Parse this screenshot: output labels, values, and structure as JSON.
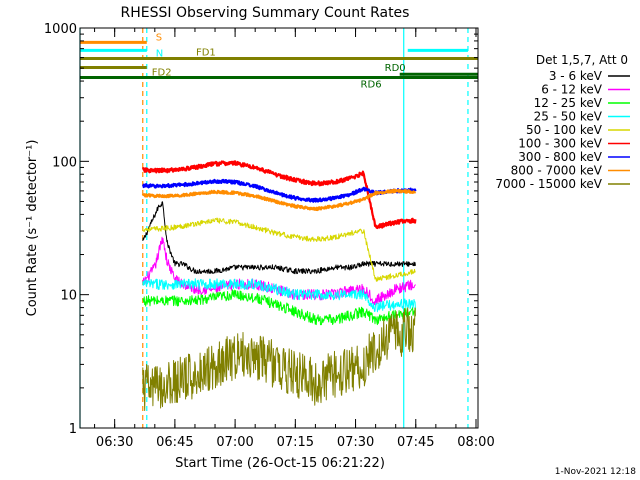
{
  "chart_data": {
    "type": "line",
    "title": "RHESSI Observing Summary Count Rates",
    "xlabel": "Start Time (26-Oct-15 06:21:22)",
    "ylabel": "Count Rate (s⁻¹ detector⁻¹)",
    "yscale": "log",
    "ylim": [
      1,
      1000
    ],
    "xlim": [
      "06:21:22",
      "08:00:30"
    ],
    "x_ticks": [
      "06:30",
      "06:45",
      "07:00",
      "07:15",
      "07:30",
      "07:45",
      "08:00"
    ],
    "y_ticks": [
      "1",
      "10",
      "100",
      "1000"
    ],
    "legend_title": "Det 1,5,7, Att 0",
    "legend_position": "right",
    "series": [
      {
        "name": "3 - 6 keV",
        "color": "#000000",
        "x": [
          "06:37",
          "06:39",
          "06:41",
          "06:42",
          "06:43",
          "06:45",
          "06:47",
          "06:50",
          "06:55",
          "07:00",
          "07:05",
          "07:10",
          "07:15",
          "07:20",
          "07:25",
          "07:29",
          "07:32",
          "07:35",
          "07:40",
          "07:45"
        ],
        "y": [
          25,
          34,
          46,
          49,
          25,
          17,
          17,
          15,
          15,
          16,
          16,
          16,
          15,
          15,
          16,
          16,
          17,
          17,
          17,
          17
        ]
      },
      {
        "name": "6 - 12 keV",
        "color": "#ff00ff",
        "x": [
          "06:37",
          "06:40",
          "06:42",
          "06:43",
          "06:45",
          "06:47",
          "06:50",
          "06:55",
          "07:00",
          "07:05",
          "07:10",
          "07:15",
          "07:20",
          "07:25",
          "07:29",
          "07:32",
          "07:35",
          "07:40",
          "07:45"
        ],
        "y": [
          12,
          16,
          27,
          18,
          13,
          12,
          11,
          11,
          12,
          12,
          11,
          10,
          10,
          10,
          11,
          11,
          9,
          11,
          12
        ]
      },
      {
        "name": "12 - 25 keV",
        "color": "#00ff00",
        "x": [
          "06:37",
          "06:40",
          "06:45",
          "06:50",
          "06:55",
          "07:00",
          "07:05",
          "07:10",
          "07:15",
          "07:20",
          "07:25",
          "07:29",
          "07:32",
          "07:35",
          "07:40",
          "07:45"
        ],
        "y": [
          9,
          9,
          9,
          9,
          9.5,
          10,
          9.5,
          8.5,
          7.5,
          6.5,
          6.5,
          7,
          7.5,
          6.5,
          7,
          7.5
        ]
      },
      {
        "name": "25 - 50 keV",
        "color": "#00ffff",
        "x": [
          "06:37",
          "06:40",
          "06:45",
          "06:50",
          "06:55",
          "07:00",
          "07:05",
          "07:10",
          "07:15",
          "07:20",
          "07:25",
          "07:29",
          "07:32",
          "07:35",
          "07:40",
          "07:45"
        ],
        "y": [
          12,
          12,
          12,
          12,
          12,
          12,
          12,
          11,
          10,
          10,
          10,
          10,
          10,
          8,
          8.5,
          8.5
        ]
      },
      {
        "name": "50 - 100 keV",
        "color": "#d7d700",
        "x": [
          "06:37",
          "06:40",
          "06:45",
          "06:50",
          "06:55",
          "07:00",
          "07:05",
          "07:10",
          "07:15",
          "07:20",
          "07:25",
          "07:29",
          "07:32",
          "07:35",
          "07:40",
          "07:45"
        ],
        "y": [
          31,
          31,
          32,
          34,
          36,
          35,
          32,
          29,
          27,
          26,
          27,
          29,
          30,
          13,
          14,
          15
        ]
      },
      {
        "name": "100 - 300 keV",
        "color": "#ff0000",
        "x": [
          "06:37",
          "06:40",
          "06:45",
          "06:50",
          "06:55",
          "07:00",
          "07:05",
          "07:10",
          "07:15",
          "07:20",
          "07:25",
          "07:29",
          "07:32",
          "07:35",
          "07:40",
          "07:45"
        ],
        "y": [
          86,
          85,
          86,
          90,
          96,
          97,
          90,
          80,
          72,
          68,
          70,
          75,
          82,
          32,
          35,
          36
        ]
      },
      {
        "name": "300 - 800 keV",
        "color": "#0000ff",
        "x": [
          "06:37",
          "06:40",
          "06:45",
          "06:50",
          "06:55",
          "07:00",
          "07:05",
          "07:10",
          "07:15",
          "07:20",
          "07:25",
          "07:29",
          "07:32",
          "07:35",
          "07:40",
          "07:45"
        ],
        "y": [
          66,
          65,
          66,
          68,
          71,
          70,
          65,
          58,
          53,
          51,
          53,
          57,
          62,
          58,
          60,
          61
        ]
      },
      {
        "name": "800 - 7000 keV",
        "color": "#ff8c00",
        "x": [
          "06:37",
          "06:40",
          "06:45",
          "06:50",
          "06:55",
          "07:00",
          "07:05",
          "07:10",
          "07:15",
          "07:20",
          "07:25",
          "07:29",
          "07:32",
          "07:35",
          "07:40",
          "07:45"
        ],
        "y": [
          56,
          55,
          55,
          57,
          59,
          58,
          55,
          50,
          46,
          44,
          46,
          49,
          52,
          58,
          60,
          59
        ]
      },
      {
        "name": "7000 - 15000 keV",
        "color": "#808000",
        "x": [
          "06:37",
          "06:40",
          "06:45",
          "06:50",
          "06:55",
          "07:00",
          "07:05",
          "07:10",
          "07:15",
          "07:20",
          "07:25",
          "07:29",
          "07:32",
          "07:35",
          "07:40",
          "07:45"
        ],
        "y": [
          2,
          2,
          2.2,
          2.5,
          3,
          3.5,
          3.5,
          3,
          2.5,
          2.2,
          2.5,
          2.8,
          3,
          4,
          5,
          5.5
        ]
      }
    ],
    "time_intervals": [
      {
        "label": "S",
        "color": "#ff8c00",
        "level": 780,
        "segments": [
          [
            "06:21:22",
            "06:38"
          ]
        ]
      },
      {
        "label": "N",
        "color": "#00ffff",
        "level": 680,
        "segments": [
          [
            "06:21:22",
            "06:38"
          ],
          [
            "07:43",
            "07:58"
          ]
        ]
      },
      {
        "label": "FD1",
        "color": "#808000",
        "level": 590,
        "segments": [
          [
            "06:21:22",
            "08:00:30"
          ]
        ]
      },
      {
        "label": "FD2",
        "color": "#808000",
        "level": 505,
        "segments": [
          [
            "06:21:22",
            "06:38"
          ]
        ]
      },
      {
        "label": "RD0",
        "color": "#006400",
        "level": 450,
        "segments": [
          [
            "07:41",
            "08:00:30"
          ]
        ]
      },
      {
        "label": "RD6",
        "color": "#006400",
        "level": 425,
        "segments": [
          [
            "06:21:22",
            "08:00:30"
          ]
        ]
      }
    ],
    "vertical_markers": [
      {
        "time": "06:37",
        "color": "#ff8c00",
        "style": "dashed"
      },
      {
        "time": "06:38",
        "color": "#00ffff",
        "style": "dashed"
      },
      {
        "time": "07:42",
        "color": "#00ffff",
        "style": "solid"
      },
      {
        "time": "07:58",
        "color": "#00ffff",
        "style": "dashed"
      },
      {
        "time": "06:21:22",
        "color": "#00ffff",
        "style": "solid"
      }
    ],
    "footer_date": "1-Nov-2021 12:18"
  }
}
